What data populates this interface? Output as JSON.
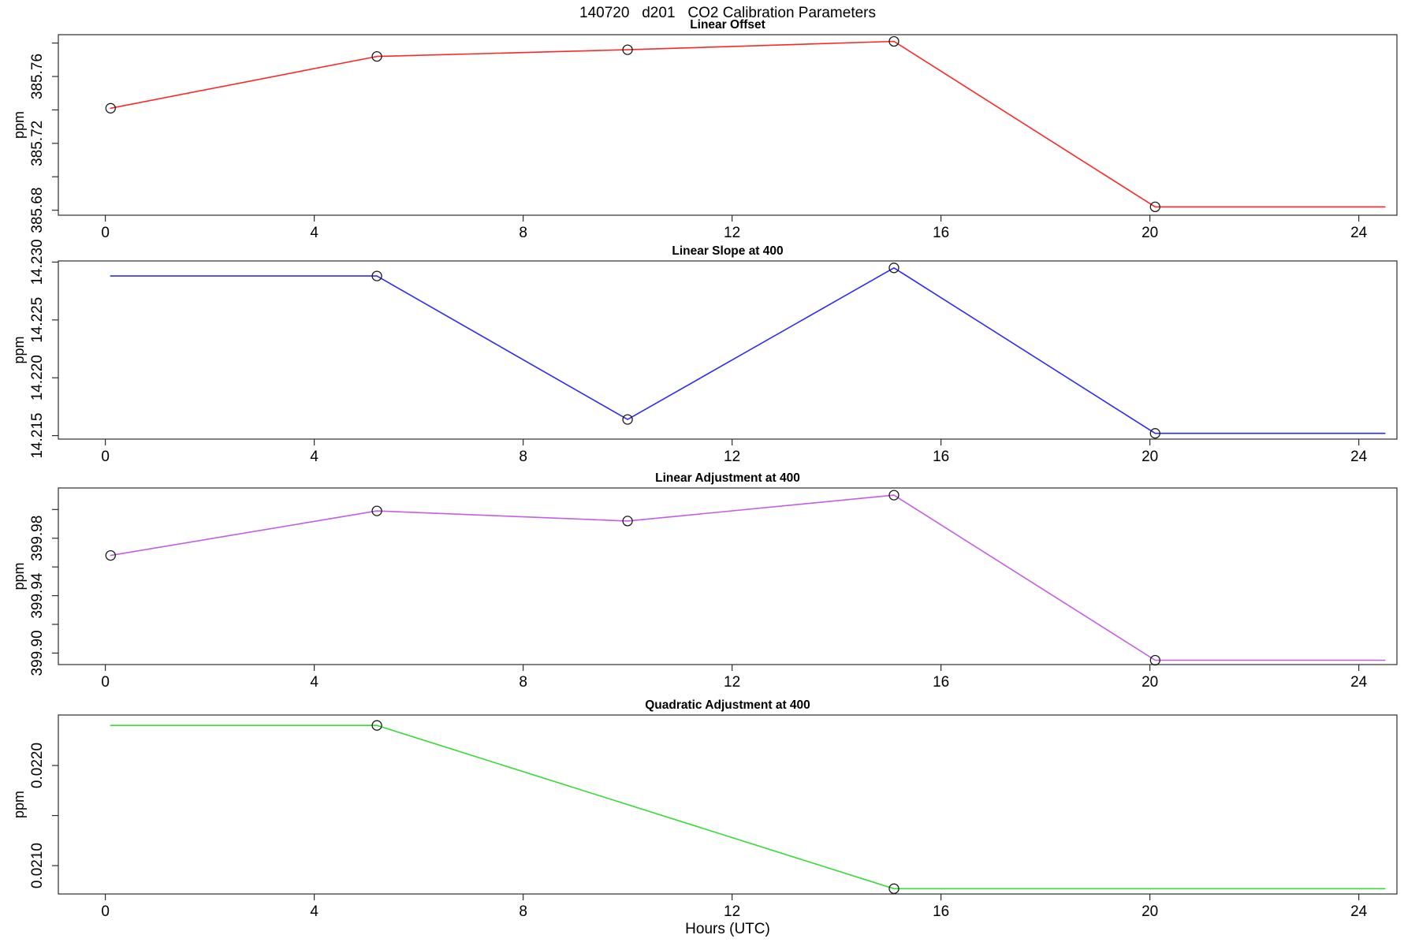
{
  "chart_data": {
    "type": "line",
    "title": "140720   d201   CO2 Calibration Parameters",
    "xlabel": "Hours (UTC)",
    "x_ticks": [
      0,
      4,
      8,
      12,
      16,
      20,
      24
    ],
    "xlim": [
      -0.9,
      24.73
    ],
    "grid": false,
    "legend": "none",
    "panels": [
      {
        "title": "Linear Offset",
        "ylabel": "ppm",
        "color": "#ff2626",
        "ylim": [
          385.677,
          385.785
        ],
        "yticks": [
          {
            "value": 385.68,
            "label": "385.68"
          },
          {
            "value": 385.7,
            "label": ""
          },
          {
            "value": 385.72,
            "label": "385.72"
          },
          {
            "value": 385.74,
            "label": ""
          },
          {
            "value": 385.76,
            "label": "385.76"
          },
          {
            "value": 385.78,
            "label": ""
          }
        ],
        "series": [
          {
            "x": 0.1,
            "y": 385.741,
            "marker": true
          },
          {
            "x": 5.2,
            "y": 385.772,
            "marker": true
          },
          {
            "x": 10.0,
            "y": 385.776,
            "marker": true
          },
          {
            "x": 15.1,
            "y": 385.781,
            "marker": true
          },
          {
            "x": 20.1,
            "y": 385.682,
            "marker": true
          },
          {
            "x": 24.5,
            "y": 385.682,
            "marker": false
          }
        ]
      },
      {
        "title": "Linear Slope at 400",
        "ylabel": "ppm",
        "color": "#2b2bff",
        "ylim": [
          14.2147,
          14.2301
        ],
        "yticks": [
          {
            "value": 14.215,
            "label": "14.215"
          },
          {
            "value": 14.22,
            "label": "14.220"
          },
          {
            "value": 14.225,
            "label": "14.225"
          },
          {
            "value": 14.23,
            "label": "14.230"
          }
        ],
        "series": [
          {
            "x": 0.1,
            "y": 14.2288,
            "marker": false
          },
          {
            "x": 5.2,
            "y": 14.2288,
            "marker": true
          },
          {
            "x": 10.0,
            "y": 14.2164,
            "marker": true
          },
          {
            "x": 15.1,
            "y": 14.2295,
            "marker": true
          },
          {
            "x": 20.1,
            "y": 14.2152,
            "marker": true
          },
          {
            "x": 24.5,
            "y": 14.2152,
            "marker": false
          }
        ]
      },
      {
        "title": "Linear Adjustment at 400",
        "ylabel": "ppm",
        "color": "#c65ce8",
        "ylim": [
          399.892,
          400.015
        ],
        "yticks": [
          {
            "value": 399.9,
            "label": "399.90"
          },
          {
            "value": 399.92,
            "label": ""
          },
          {
            "value": 399.94,
            "label": "399.94"
          },
          {
            "value": 399.96,
            "label": ""
          },
          {
            "value": 399.98,
            "label": "399.98"
          },
          {
            "value": 400.0,
            "label": ""
          }
        ],
        "series": [
          {
            "x": 0.1,
            "y": 399.968,
            "marker": true
          },
          {
            "x": 5.2,
            "y": 399.999,
            "marker": true
          },
          {
            "x": 10.0,
            "y": 399.992,
            "marker": true
          },
          {
            "x": 15.1,
            "y": 400.01,
            "marker": true
          },
          {
            "x": 20.1,
            "y": 399.895,
            "marker": true
          },
          {
            "x": 24.5,
            "y": 399.895,
            "marker": false
          }
        ]
      },
      {
        "title": "Quadratic Adjustment at 400",
        "ylabel": "ppm",
        "color": "#35dd35",
        "ylim": [
          0.020717,
          0.022504
        ],
        "yticks": [
          {
            "value": 0.021,
            "label": "0.0210"
          },
          {
            "value": 0.0215,
            "label": ""
          },
          {
            "value": 0.022,
            "label": "0.0220"
          }
        ],
        "series": [
          {
            "x": 0.1,
            "y": 0.0224,
            "marker": false
          },
          {
            "x": 5.2,
            "y": 0.0224,
            "marker": true
          },
          {
            "x": 15.1,
            "y": 0.02077,
            "marker": true
          },
          {
            "x": 24.5,
            "y": 0.02077,
            "marker": false
          }
        ]
      }
    ]
  }
}
